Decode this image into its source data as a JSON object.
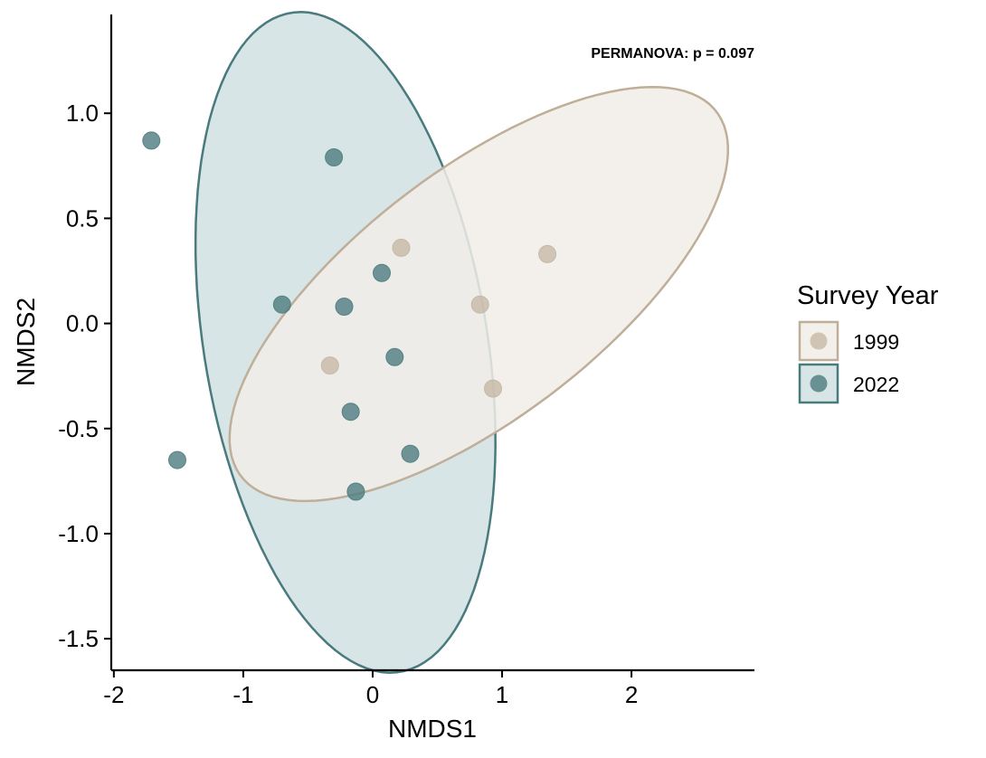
{
  "chart_data": {
    "type": "scatter",
    "title": "",
    "xlabel": "NMDS1",
    "ylabel": "NMDS2",
    "xlim": [
      -2.02,
      2.95
    ],
    "ylim": [
      -1.65,
      1.47
    ],
    "xticks": [
      -2,
      -1,
      0,
      1,
      2
    ],
    "yticks": [
      -1.5,
      -1.0,
      -0.5,
      0.0,
      0.5,
      1.0
    ],
    "xtick_labels": [
      "-2",
      "-1",
      "0",
      "1",
      "2"
    ],
    "ytick_labels": [
      "-1.5",
      "-1.0",
      "-0.5",
      "0.0",
      "0.5",
      "1.0"
    ],
    "grid": false,
    "annotation": "PERMANOVA: p = 0.097",
    "legend": {
      "title": "Survey Year",
      "placement": "right"
    },
    "series": [
      {
        "name": "1999",
        "color": "#c4b5a3",
        "ellipse_fill": "#f1ede7",
        "ellipse_stroke": "#bfae98",
        "points": [
          {
            "x": 0.22,
            "y": 0.36
          },
          {
            "x": 1.35,
            "y": 0.33
          },
          {
            "x": 0.83,
            "y": 0.09
          },
          {
            "x": -0.33,
            "y": -0.2
          },
          {
            "x": 0.93,
            "y": -0.31
          }
        ],
        "ellipse": {
          "cx": 0.82,
          "cy": 0.14,
          "rx": 2.06,
          "ry": 0.66,
          "angle_deg": 22
        }
      },
      {
        "name": "2022",
        "color": "#4e7c80",
        "ellipse_fill": "#9ebec0",
        "ellipse_stroke": "#497a7e",
        "points": [
          {
            "x": -1.71,
            "y": 0.87
          },
          {
            "x": -0.3,
            "y": 0.79
          },
          {
            "x": 0.07,
            "y": 0.24
          },
          {
            "x": -0.7,
            "y": 0.09
          },
          {
            "x": -0.22,
            "y": 0.08
          },
          {
            "x": 0.17,
            "y": -0.16
          },
          {
            "x": -0.17,
            "y": -0.42
          },
          {
            "x": 0.29,
            "y": -0.62
          },
          {
            "x": -1.51,
            "y": -0.65
          },
          {
            "x": -0.13,
            "y": -0.8
          }
        ],
        "ellipse": {
          "cx": -0.21,
          "cy": -0.09,
          "rx": 1.64,
          "ry": 1.06,
          "angle_deg": -68
        }
      }
    ]
  }
}
